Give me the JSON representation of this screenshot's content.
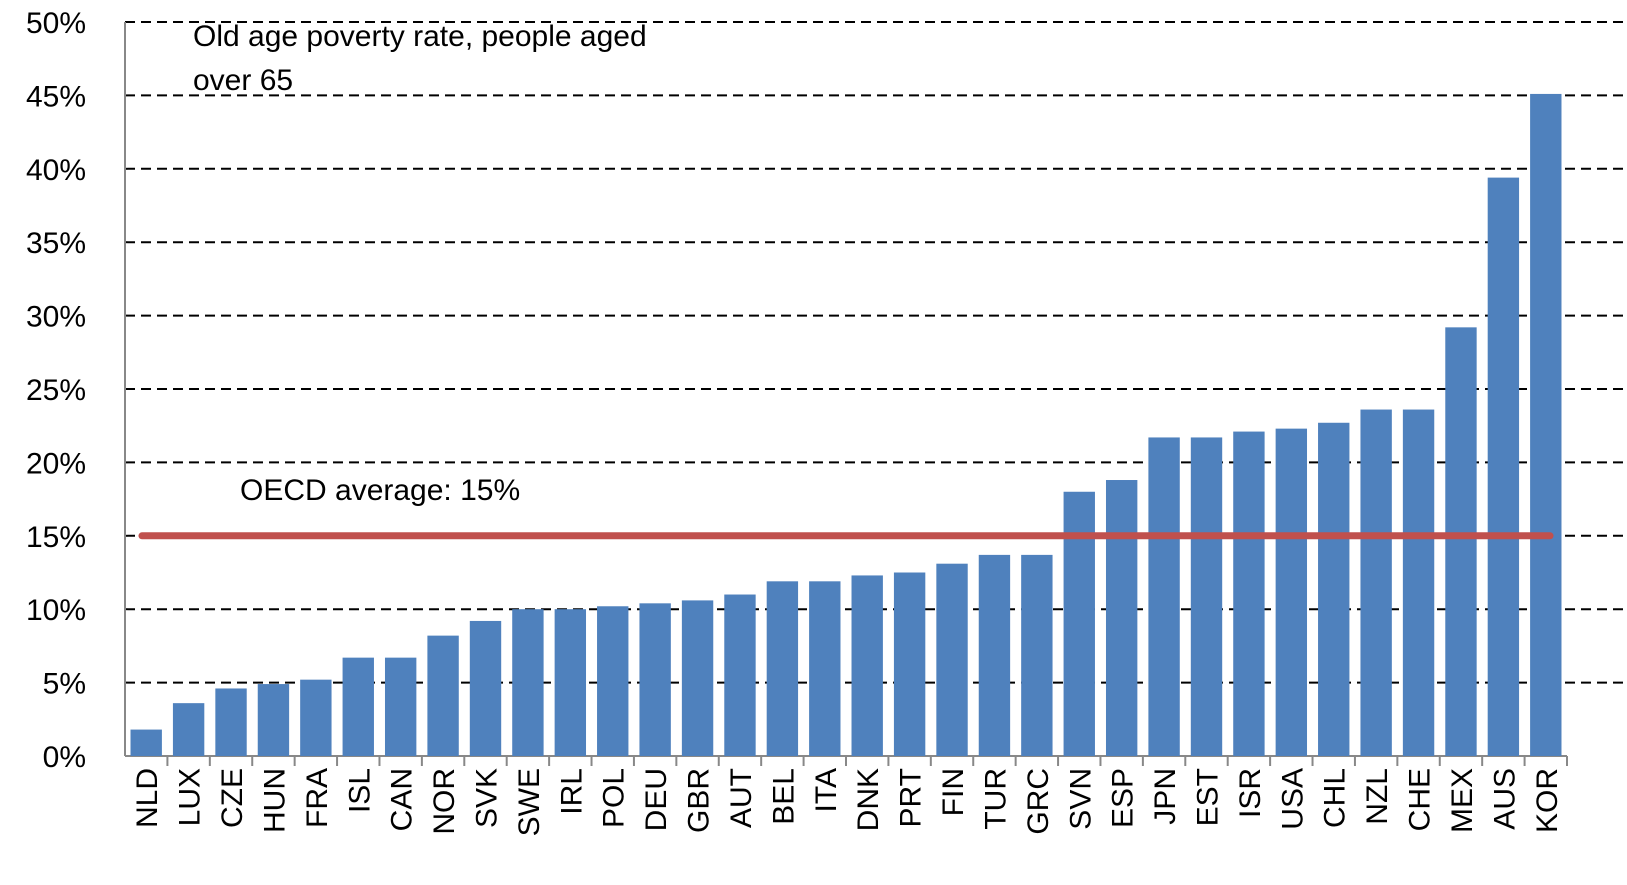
{
  "chart_data": {
    "type": "bar",
    "annotation": [
      "Old age poverty rate, people aged",
      "over 65"
    ],
    "categories": [
      "NLD",
      "LUX",
      "CZE",
      "HUN",
      "FRA",
      "ISL",
      "CAN",
      "NOR",
      "SVK",
      "SWE",
      "IRL",
      "POL",
      "DEU",
      "GBR",
      "AUT",
      "BEL",
      "ITA",
      "DNK",
      "PRT",
      "FIN",
      "TUR",
      "GRC",
      "SVN",
      "ESP",
      "JPN",
      "EST",
      "ISR",
      "USA",
      "CHL",
      "NZL",
      "CHE",
      "MEX",
      "AUS",
      "KOR"
    ],
    "values": [
      1.8,
      3.6,
      4.6,
      4.9,
      5.2,
      6.7,
      6.7,
      8.2,
      9.2,
      10.0,
      10.0,
      10.2,
      10.4,
      10.6,
      11.0,
      11.9,
      11.9,
      12.3,
      12.5,
      13.1,
      13.7,
      13.7,
      18.0,
      18.8,
      21.7,
      21.7,
      22.1,
      22.3,
      22.7,
      23.6,
      23.6,
      29.2,
      39.4,
      45.1
    ],
    "color": "#4f81bd",
    "average": 15,
    "average_label": "OECD average: 15%",
    "average_color": "#c0504d",
    "ylim": [
      0,
      50
    ],
    "yticks": [
      {
        "value": 0,
        "label": "0%"
      },
      {
        "value": 5,
        "label": "5%"
      },
      {
        "value": 10,
        "label": "10%"
      },
      {
        "value": 15,
        "label": "15%"
      },
      {
        "value": 20,
        "label": "20%"
      },
      {
        "value": 25,
        "label": "25%"
      },
      {
        "value": 30,
        "label": "30%"
      },
      {
        "value": 35,
        "label": "35%"
      },
      {
        "value": 40,
        "label": "40%"
      },
      {
        "value": 45,
        "label": "45%"
      },
      {
        "value": 50,
        "label": "50%"
      }
    ],
    "grid": true
  }
}
